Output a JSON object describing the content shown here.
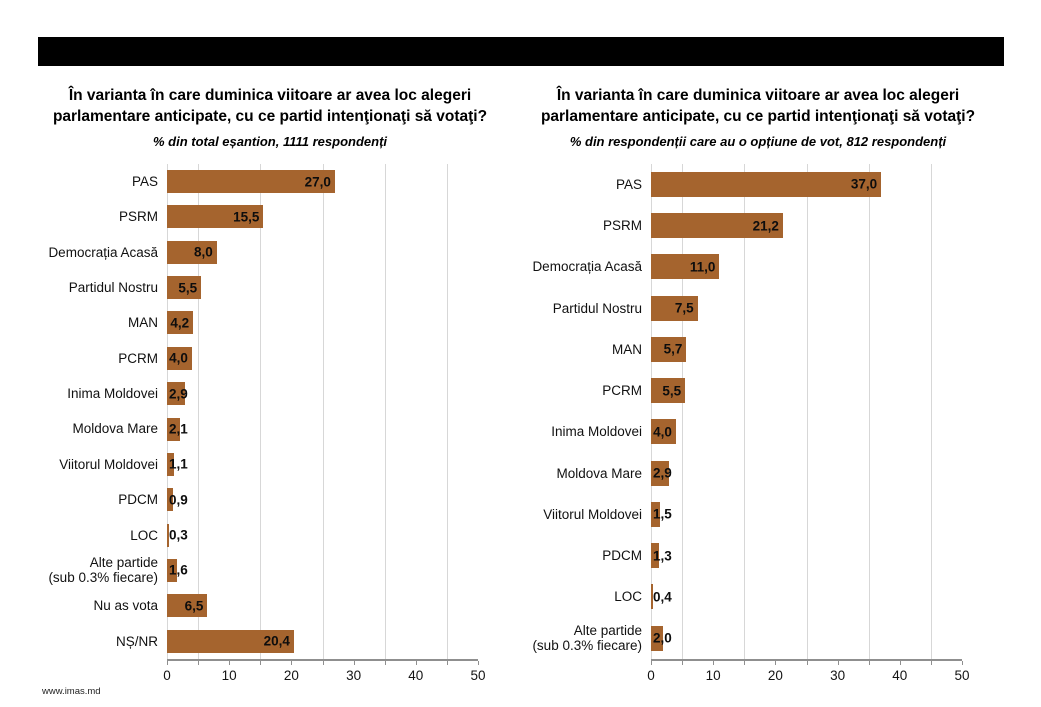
{
  "page": {
    "footer": "www.imas.md"
  },
  "chart_data": [
    {
      "type": "bar",
      "orientation": "horizontal",
      "title": "În varianta în care duminica viitoare ar avea loc alegeri parlamentare anticipate, cu ce partid intenţionaţi să votaţi?",
      "subtitle": "% din total eșantion, 1111 respondenți",
      "categories": [
        "PAS",
        "PSRM",
        "Democrația Acasă",
        "Partidul Nostru",
        "MAN",
        "PCRM",
        "Inima Moldovei",
        "Moldova Mare",
        "Viitorul Moldovei",
        "PDCM",
        "LOC",
        "Alte partide\n(sub 0.3% fiecare)",
        "Nu as vota",
        "NȘ/NR"
      ],
      "values": [
        27.0,
        15.5,
        8.0,
        5.5,
        4.2,
        4.0,
        2.9,
        2.1,
        1.1,
        0.9,
        0.3,
        1.6,
        6.5,
        20.4
      ],
      "value_labels": [
        "27,0",
        "15,5",
        "8,0",
        "5,5",
        "4,2",
        "4,0",
        "2,9",
        "2,1",
        "1,1",
        "0,9",
        "0,3",
        "1,6",
        "6,5",
        "20,4"
      ],
      "xlim": [
        0,
        50
      ],
      "xticks": [
        0,
        10,
        20,
        30,
        40,
        50
      ],
      "minor_tick_step": 5,
      "gridlines_at": [
        0,
        5,
        15,
        25,
        35,
        45
      ],
      "bar_color": "#A5642E",
      "grid": true,
      "legend": "none"
    },
    {
      "type": "bar",
      "orientation": "horizontal",
      "title": "În varianta în care duminica viitoare ar avea loc alegeri parlamentare anticipate, cu ce partid intenţionaţi să votaţi?",
      "subtitle": "% din respondenții care au o opțiune de vot, 812 respondenți",
      "categories": [
        "PAS",
        "PSRM",
        "Democrația Acasă",
        "Partidul Nostru",
        "MAN",
        "PCRM",
        "Inima Moldovei",
        "Moldova Mare",
        "Viitorul Moldovei",
        "PDCM",
        "LOC",
        "Alte partide\n(sub 0.3% fiecare)"
      ],
      "values": [
        37.0,
        21.2,
        11.0,
        7.5,
        5.7,
        5.5,
        4.0,
        2.9,
        1.5,
        1.3,
        0.4,
        2.0
      ],
      "value_labels": [
        "37,0",
        "21,2",
        "11,0",
        "7,5",
        "5,7",
        "5,5",
        "4,0",
        "2,9",
        "1,5",
        "1,3",
        "0,4",
        "2,0"
      ],
      "xlim": [
        0,
        50
      ],
      "xticks": [
        0,
        10,
        20,
        30,
        40,
        50
      ],
      "minor_tick_step": 5,
      "gridlines_at": [
        0,
        5,
        15,
        25,
        35,
        45
      ],
      "bar_color": "#A5642E",
      "grid": true,
      "legend": "none"
    }
  ]
}
